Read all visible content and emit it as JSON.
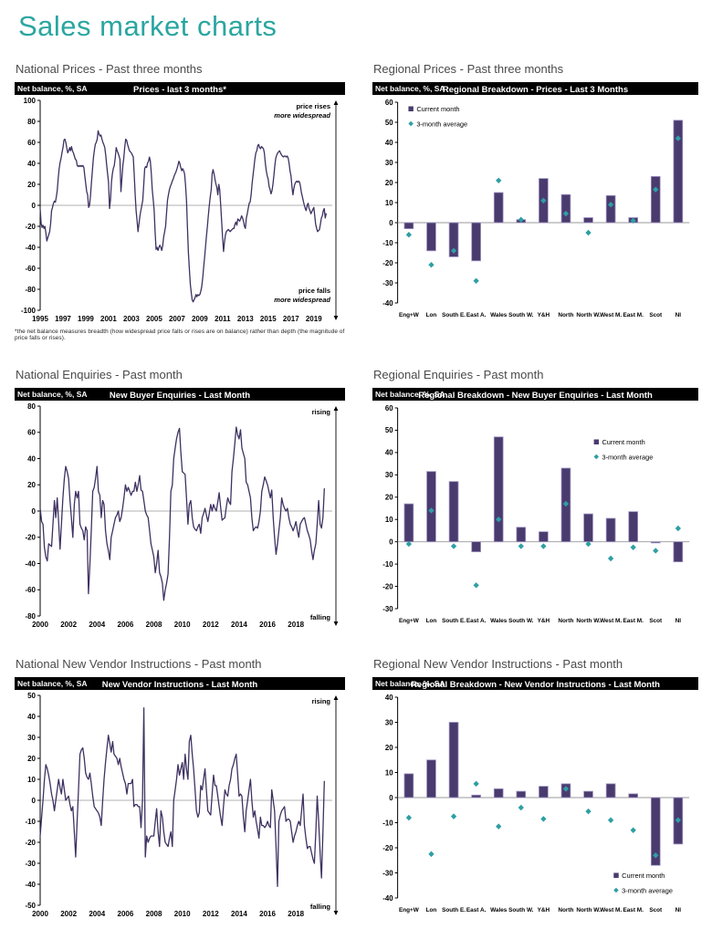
{
  "page": {
    "title": "Sales market charts"
  },
  "colors": {
    "title_teal": "#2AA6A1",
    "line": "#3E3161",
    "bar_fill": "#4A3B6E",
    "bar_stroke": "#A093C2",
    "marker_teal": "#2E9FA4",
    "zero_line": "#999999",
    "axis": "#000000",
    "header_bg": "#000000",
    "header_fg": "#FFFFFF",
    "section_title": "#4A4A4A"
  },
  "chart_data": [
    {
      "type": "line",
      "section_title": "National Prices - Past three months",
      "header_left": "Net balance, %, SA",
      "title": "Prices - last 3 months*",
      "ylim": [
        -100,
        100
      ],
      "ytick": 20,
      "xlim": [
        1995,
        2020.3
      ],
      "xticks": [
        1995,
        1997,
        1999,
        2001,
        2003,
        2005,
        2007,
        2009,
        2011,
        2013,
        2015,
        2017,
        2019
      ],
      "annotations": {
        "top": [
          "price rises",
          "more widespread"
        ],
        "bottom": [
          "price falls",
          "more widespread"
        ]
      },
      "footnote": "*the net balance measures breadth (how widespread price falls or rises are on balance) rather than depth (the magnitude of price falls or rises).",
      "series": {
        "x_start": 1995,
        "x_step": 0.0833333,
        "values": [
          -3,
          -17,
          -21,
          -19,
          -22,
          -20,
          -26,
          -34,
          -31,
          -28,
          -25,
          -18,
          -5,
          -2,
          2,
          4,
          3,
          8,
          14,
          26,
          35,
          41,
          45,
          50,
          55,
          62,
          63,
          60,
          55,
          50,
          52,
          55,
          52,
          56,
          52,
          50,
          47,
          44,
          43,
          38,
          37,
          38,
          37,
          38,
          37,
          38,
          36,
          28,
          20,
          13,
          10,
          -2,
          0,
          10,
          22,
          33,
          45,
          52,
          58,
          60,
          63,
          71,
          68,
          66,
          67,
          63,
          60,
          58,
          55,
          48,
          38,
          30,
          22,
          -3,
          5,
          22,
          30,
          35,
          38,
          45,
          55,
          52,
          50,
          47,
          44,
          13,
          25,
          38,
          45,
          55,
          63,
          62,
          58,
          55,
          52,
          51,
          50,
          48,
          46,
          30,
          10,
          -5,
          -15,
          -25,
          -18,
          -10,
          -5,
          0,
          5,
          20,
          35,
          37,
          36,
          40,
          42,
          46,
          42,
          30,
          15,
          5,
          -5,
          -25,
          -42,
          -40,
          -43,
          -40,
          -38,
          -40,
          -43,
          -38,
          -30,
          -25,
          -20,
          -8,
          5,
          10,
          15,
          18,
          20,
          23,
          25,
          28,
          30,
          32,
          35,
          38,
          42,
          40,
          36,
          33,
          35,
          33,
          30,
          20,
          5,
          -20,
          -45,
          -60,
          -75,
          -83,
          -90,
          -92,
          -90,
          -88,
          -85,
          -87,
          -85,
          -86,
          -85,
          -82,
          -78,
          -70,
          -60,
          -50,
          -40,
          -30,
          -20,
          -10,
          0,
          8,
          15,
          30,
          34,
          30,
          25,
          20,
          17,
          10,
          20,
          15,
          0,
          -15,
          -30,
          -44,
          -35,
          -28,
          -25,
          -24,
          -23,
          -24,
          -25,
          -24,
          -23,
          -22,
          -22,
          -18,
          -16,
          -19,
          -13,
          -14,
          -15,
          -13,
          -10,
          -12,
          -15,
          -20,
          -22,
          -12,
          -8,
          -3,
          2,
          3,
          10,
          20,
          28,
          36,
          44,
          50,
          52,
          57,
          58,
          55,
          54,
          56,
          55,
          54,
          50,
          40,
          33,
          28,
          25,
          18,
          15,
          11,
          14,
          20,
          28,
          38,
          45,
          48,
          50,
          51,
          52,
          50,
          48,
          47,
          46,
          47,
          47,
          46,
          47,
          45,
          40,
          33,
          28,
          18,
          10,
          16,
          20,
          22,
          23,
          22,
          23,
          22,
          18,
          12,
          8,
          4,
          0,
          -3,
          -5,
          0,
          2,
          -3,
          -5,
          -8,
          -6,
          -4,
          -2,
          -10,
          -18,
          -22,
          -25,
          -24,
          -23,
          -18,
          -12,
          -10,
          -5,
          -3,
          -12,
          -8
        ]
      }
    },
    {
      "type": "bar",
      "section_title": "Regional Prices - Past three months",
      "header_left": "Net balance, %, SA",
      "title": "Regional Breakdown - Prices - Last 3 Months",
      "ylim": [
        -40,
        60
      ],
      "ytick": 10,
      "categories": [
        "Eng+W",
        "Lon",
        "South E.",
        "East A.",
        "Wales",
        "South W.",
        "Y&H",
        "North",
        "North W.",
        "West M.",
        "East M.",
        "Scot",
        "NI"
      ],
      "series": [
        {
          "name": "Current month",
          "values": [
            -3,
            -14,
            -17,
            -19,
            15,
            1.5,
            22,
            14,
            2.5,
            13.5,
            2.5,
            23,
            51
          ]
        },
        {
          "name": "3-month average",
          "values": [
            -6,
            -21,
            -14,
            -29,
            21,
            1.5,
            11,
            4.5,
            -5,
            9,
            1,
            16.5,
            42
          ]
        }
      ],
      "legend_position": "top-left"
    },
    {
      "type": "line",
      "section_title": "National Enquiries - Past month",
      "header_left": "Net balance, %, SA",
      "title": "New Buyer Enquiries - Last Month",
      "ylim": [
        -80,
        80
      ],
      "ytick": 20,
      "xlim": [
        2000,
        2020.3
      ],
      "xticks": [
        2000,
        2002,
        2004,
        2006,
        2008,
        2010,
        2012,
        2014,
        2016,
        2018
      ],
      "annotations": {
        "top": [
          "rising"
        ],
        "bottom": [
          "falling"
        ]
      },
      "series": {
        "x_start": 2000,
        "x_step": 0.1,
        "values": [
          2,
          -8,
          -10,
          -28,
          -35,
          -38,
          -25,
          -26,
          -27,
          -10,
          8,
          -5,
          10,
          -8,
          -29,
          -10,
          10,
          25,
          34,
          30,
          25,
          8,
          -5,
          -20,
          5,
          15,
          10,
          15,
          -10,
          -13,
          -15,
          -22,
          -12,
          -15,
          -63,
          -40,
          -15,
          15,
          18,
          25,
          34,
          15,
          12,
          -5,
          8,
          5,
          -15,
          -25,
          -30,
          -37,
          -20,
          -15,
          -10,
          -5,
          -3,
          0,
          -8,
          -5,
          2,
          10,
          20,
          15,
          18,
          15,
          12,
          15,
          15,
          22,
          15,
          20,
          27,
          16,
          15,
          8,
          0,
          -3,
          -5,
          -15,
          -25,
          -30,
          -35,
          -47,
          -40,
          -30,
          -47,
          -50,
          -55,
          -68,
          -60,
          -55,
          -48,
          -20,
          15,
          20,
          40,
          48,
          55,
          60,
          63,
          45,
          30,
          29,
          28,
          10,
          -10,
          5,
          8,
          -5,
          -12,
          -14,
          -15,
          -12,
          -10,
          -17,
          -5,
          -2,
          2,
          -3,
          -8,
          -2,
          5,
          0,
          5,
          2,
          0,
          7,
          14,
          3,
          -7,
          -6,
          -5,
          3,
          10,
          7,
          5,
          30,
          40,
          52,
          64,
          58,
          55,
          62,
          48,
          44,
          40,
          22,
          20,
          15,
          10,
          -5,
          -15,
          -13,
          -12,
          -13,
          -8,
          0,
          15,
          20,
          26,
          23,
          20,
          15,
          10,
          16,
          -5,
          -20,
          -33,
          -25,
          -15,
          -5,
          10,
          5,
          2,
          0,
          2,
          -5,
          -10,
          -12,
          -15,
          -12,
          -8,
          -15,
          -20,
          -10,
          -8,
          -6,
          -5,
          -10,
          -15,
          -18,
          -22,
          -30,
          -37,
          -30,
          -25,
          -10,
          8,
          -10,
          -13,
          -5,
          17
        ]
      }
    },
    {
      "type": "bar",
      "section_title": "Regional Enquiries - Past month",
      "header_left": "Net balance, %, SA",
      "title": "Regional Breakdown - New Buyer Enquiries - Last Month",
      "ylim": [
        -30,
        60
      ],
      "ytick": 10,
      "categories": [
        "Eng+W",
        "Lon",
        "South E.",
        "East A.",
        "Wales",
        "South W.",
        "Y&H",
        "North",
        "North W.",
        "West M.",
        "East M.",
        "Scot",
        "NI"
      ],
      "series": [
        {
          "name": "Current month",
          "values": [
            17,
            31.5,
            27,
            -4.5,
            47,
            6.5,
            4.5,
            33,
            12.5,
            10.5,
            13.5,
            -0.5,
            -9
          ]
        },
        {
          "name": "3-month average",
          "values": [
            -1,
            14,
            -2,
            -19.5,
            10,
            -2,
            -2,
            17,
            -1,
            -7.5,
            -2.5,
            -4,
            6
          ]
        }
      ],
      "legend_position": "middle-right"
    },
    {
      "type": "line",
      "section_title": "National New Vendor Instructions - Past month",
      "header_left": "Net balance, %, SA",
      "title": "New Vendor Instructions - Last Month",
      "ylim": [
        -50,
        50
      ],
      "ytick": 10,
      "xlim": [
        2000,
        2020.3
      ],
      "xticks": [
        2000,
        2002,
        2004,
        2006,
        2008,
        2010,
        2012,
        2014,
        2016,
        2018
      ],
      "annotations": {
        "top": [
          "rising"
        ],
        "bottom": [
          "falling"
        ]
      },
      "series": {
        "x_start": 2000,
        "x_step": 0.1,
        "values": [
          -17,
          -8,
          0,
          10,
          17,
          15,
          12,
          8,
          3,
          0,
          -5,
          0,
          5,
          10,
          6,
          3,
          10,
          5,
          0,
          1,
          2,
          -2,
          -5,
          -3,
          -15,
          -27,
          -10,
          5,
          22,
          24,
          25,
          20,
          13,
          11,
          10,
          13,
          8,
          2,
          -3,
          -4,
          -5,
          -6,
          -8,
          -12,
          0,
          10,
          18,
          25,
          31,
          27,
          23,
          28,
          22,
          21,
          20,
          17,
          20,
          16,
          13,
          10,
          8,
          3,
          8,
          8,
          8,
          10,
          -3,
          -2,
          -2,
          -3,
          -3,
          -13,
          0,
          44,
          -27,
          -17,
          -20,
          -18,
          -17,
          -17,
          -17,
          -10,
          -4,
          -15,
          -22,
          -5,
          -8,
          -15,
          -20,
          -21,
          -22,
          -18,
          -15,
          -22,
          0,
          5,
          10,
          17,
          12,
          15,
          18,
          10,
          22,
          15,
          10,
          28,
          31,
          22,
          15,
          5,
          -5,
          -8,
          -6,
          7,
          5,
          10,
          15,
          5,
          -5,
          -6,
          -7,
          3,
          12,
          7,
          7,
          2,
          -3,
          -8,
          -12,
          -3,
          5,
          3,
          2,
          7,
          10,
          15,
          17,
          20,
          22,
          12,
          2,
          3,
          2,
          -8,
          -15,
          -5,
          0,
          5,
          10,
          0,
          -8,
          -5,
          -10,
          -14,
          -18,
          -8,
          -12,
          -12,
          -13,
          -12,
          -10,
          -12,
          -13,
          5,
          0,
          -5,
          -22,
          -41,
          -10,
          -7,
          -5,
          -4,
          -3,
          -10,
          -9,
          -9,
          -10,
          -15,
          -20,
          -17,
          -15,
          -12,
          -10,
          -12,
          -5,
          3,
          -12,
          -18,
          -23,
          -22,
          -22,
          -25,
          -28,
          -30,
          -15,
          2,
          -10,
          -25,
          -37,
          -15,
          9
        ]
      }
    },
    {
      "type": "bar",
      "section_title": "Regional New Vendor Instructions - Past month",
      "header_left": "Net balance, %, SA",
      "title": "Regional Breakdown - New Vendor Instructions - Last Month",
      "ylim": [
        -40,
        40
      ],
      "ytick": 10,
      "categories": [
        "Eng+W",
        "Lon",
        "South E.",
        "East A.",
        "Wales",
        "South W.",
        "Y&H",
        "North",
        "North W.",
        "West M.",
        "East M.",
        "Scot",
        "NI"
      ],
      "series": [
        {
          "name": "Current month",
          "values": [
            9.5,
            15,
            30,
            1,
            3.5,
            2.5,
            4.5,
            5.5,
            2.5,
            5.5,
            1.5,
            -27,
            -18.5
          ]
        },
        {
          "name": "3-month average",
          "values": [
            -8,
            -22.5,
            -7.5,
            5.5,
            -11.5,
            -4,
            -8.5,
            3.5,
            -5.5,
            -9,
            -13,
            -23,
            -9
          ]
        }
      ],
      "legend_position": "bottom-right"
    }
  ]
}
